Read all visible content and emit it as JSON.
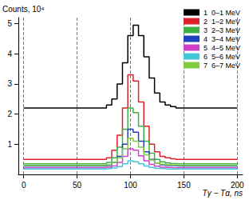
{
  "chart_data": {
    "type": "line",
    "x_label": "Tγ − Tα, ns",
    "y_label": "Counts, 10⁴",
    "x": [
      0,
      5,
      10,
      15,
      20,
      25,
      30,
      35,
      40,
      45,
      50,
      55,
      60,
      65,
      70,
      75,
      80,
      85,
      90,
      95,
      100,
      105,
      110,
      115,
      120,
      125,
      130,
      135,
      140,
      145,
      150,
      155,
      160,
      165,
      170,
      175,
      180,
      185,
      190,
      195,
      200
    ],
    "series": [
      {
        "name": "1  0–1 MeV",
        "color": "#000000",
        "values": [
          2.2,
          2.2,
          2.2,
          2.2,
          2.2,
          2.2,
          2.2,
          2.2,
          2.2,
          2.2,
          2.2,
          2.2,
          2.2,
          2.2,
          2.2,
          2.2,
          2.3,
          2.5,
          3.0,
          3.7,
          4.6,
          4.95,
          4.6,
          3.9,
          3.2,
          2.7,
          2.4,
          2.3,
          2.25,
          2.2,
          2.2,
          2.2,
          2.2,
          2.2,
          2.2,
          2.2,
          2.2,
          2.2,
          2.2,
          2.2,
          2.2
        ]
      },
      {
        "name": "2  1–2 MeV",
        "color": "#e0202a",
        "values": [
          0.5,
          0.5,
          0.5,
          0.5,
          0.5,
          0.5,
          0.5,
          0.5,
          0.5,
          0.5,
          0.5,
          0.5,
          0.5,
          0.5,
          0.5,
          0.5,
          0.55,
          0.8,
          1.3,
          2.2,
          3.3,
          3.1,
          2.4,
          1.6,
          1.0,
          0.75,
          0.6,
          0.55,
          0.52,
          0.5,
          0.5,
          0.5,
          0.5,
          0.5,
          0.5,
          0.5,
          0.5,
          0.5,
          0.5,
          0.5,
          0.5
        ]
      },
      {
        "name": "3  2–3 MeV",
        "color": "#3cb043",
        "values": [
          0.35,
          0.35,
          0.35,
          0.35,
          0.35,
          0.35,
          0.35,
          0.35,
          0.35,
          0.35,
          0.35,
          0.35,
          0.35,
          0.35,
          0.35,
          0.35,
          0.4,
          0.55,
          0.9,
          1.5,
          2.2,
          2.05,
          1.6,
          1.1,
          0.7,
          0.5,
          0.42,
          0.38,
          0.36,
          0.35,
          0.35,
          0.35,
          0.35,
          0.35,
          0.35,
          0.35,
          0.35,
          0.35,
          0.35,
          0.35,
          0.35
        ]
      },
      {
        "name": "4  3–4 MeV",
        "color": "#2040c0",
        "values": [
          0.28,
          0.28,
          0.28,
          0.28,
          0.28,
          0.28,
          0.28,
          0.28,
          0.28,
          0.28,
          0.28,
          0.28,
          0.28,
          0.28,
          0.28,
          0.28,
          0.3,
          0.4,
          0.6,
          1.0,
          1.5,
          1.4,
          1.1,
          0.75,
          0.5,
          0.38,
          0.32,
          0.3,
          0.29,
          0.28,
          0.28,
          0.28,
          0.28,
          0.28,
          0.28,
          0.28,
          0.28,
          0.28,
          0.28,
          0.28,
          0.28
        ]
      },
      {
        "name": "5  4–5 MeV",
        "color": "#d040c8",
        "values": [
          0.22,
          0.22,
          0.22,
          0.22,
          0.22,
          0.22,
          0.22,
          0.22,
          0.22,
          0.22,
          0.22,
          0.22,
          0.22,
          0.22,
          0.22,
          0.22,
          0.24,
          0.28,
          0.4,
          0.6,
          0.85,
          0.8,
          0.62,
          0.45,
          0.33,
          0.27,
          0.24,
          0.23,
          0.22,
          0.22,
          0.22,
          0.22,
          0.22,
          0.22,
          0.22,
          0.22,
          0.22,
          0.22,
          0.22,
          0.22,
          0.22
        ]
      },
      {
        "name": "6  5–6 MeV",
        "color": "#40c8d8",
        "values": [
          0.18,
          0.18,
          0.18,
          0.18,
          0.18,
          0.18,
          0.18,
          0.18,
          0.18,
          0.18,
          0.18,
          0.18,
          0.18,
          0.18,
          0.18,
          0.18,
          0.19,
          0.21,
          0.26,
          0.35,
          0.45,
          0.42,
          0.35,
          0.28,
          0.23,
          0.2,
          0.19,
          0.18,
          0.18,
          0.18,
          0.18,
          0.18,
          0.18,
          0.18,
          0.18,
          0.18,
          0.18,
          0.18,
          0.18,
          0.18,
          0.18
        ]
      },
      {
        "name": "7  6–7 MeV",
        "color": "#80cc40",
        "values": [
          0.3,
          0.3,
          0.3,
          0.3,
          0.3,
          0.3,
          0.3,
          0.3,
          0.3,
          0.3,
          0.3,
          0.3,
          0.3,
          0.3,
          0.3,
          0.3,
          0.32,
          0.4,
          0.55,
          0.85,
          1.2,
          1.1,
          0.9,
          0.65,
          0.48,
          0.38,
          0.34,
          0.32,
          0.31,
          0.3,
          0.3,
          0.3,
          0.3,
          0.3,
          0.3,
          0.3,
          0.3,
          0.3,
          0.3,
          0.3,
          0.3
        ]
      }
    ],
    "xlim": [
      -5,
      205
    ],
    "xticks": [
      0,
      50,
      100,
      150,
      200
    ],
    "ylim": [
      0,
      5.2
    ],
    "yticks": [
      1,
      2,
      3,
      4,
      5
    ],
    "grid": true,
    "legend": "upper right",
    "line_style": "steps"
  }
}
